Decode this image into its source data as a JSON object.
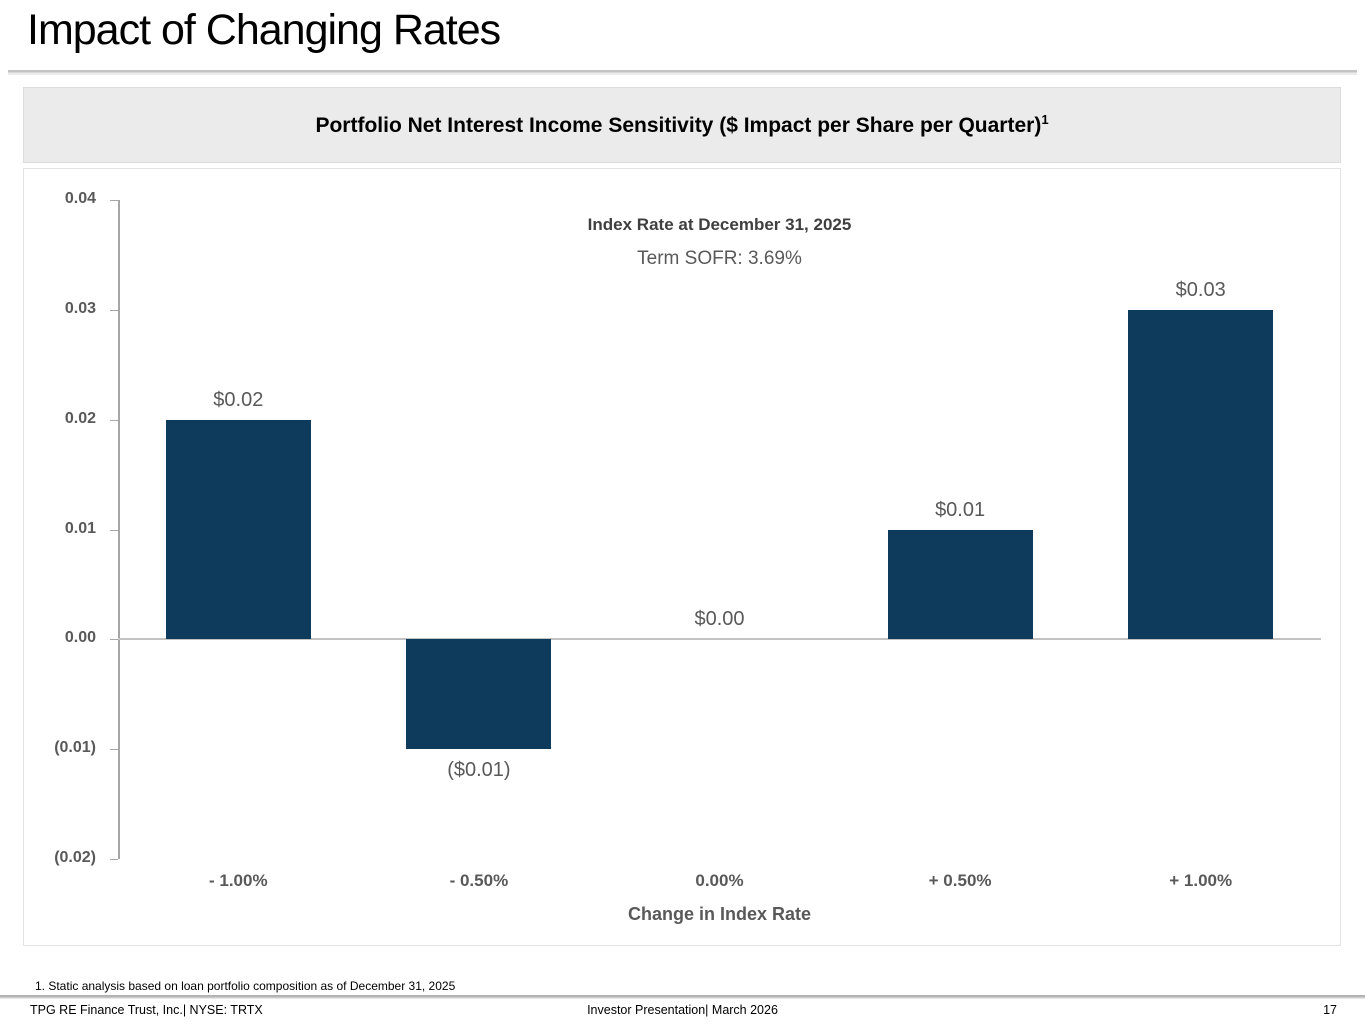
{
  "page": {
    "title": "Impact of Changing Rates",
    "footnote": "1. Static analysis based on loan portfolio composition as of December 31, 2025",
    "footer": {
      "left": "TPG RE Finance Trust, Inc.| NYSE: TRTX",
      "center": "Investor Presentation| March 2026",
      "page_number": "17"
    }
  },
  "panel": {
    "title": "Portfolio Net Interest Income Sensitivity ($ Impact per Share per Quarter)",
    "title_superscript": "1"
  },
  "chart_data": {
    "type": "bar",
    "title": "Portfolio Net Interest Income Sensitivity ($ Impact per Share per Quarter)",
    "annotation": {
      "line1": "Index Rate at December 31, 2025",
      "line2": "Term SOFR: 3.69%"
    },
    "categories": [
      "- 1.00%",
      "- 0.50%",
      "0.00%",
      "+ 0.50%",
      "+ 1.00%"
    ],
    "values": [
      0.02,
      -0.01,
      0.0,
      0.01,
      0.03
    ],
    "value_labels": [
      "$0.02",
      "($0.01)",
      "$0.00",
      "$0.01",
      "$0.03"
    ],
    "xlabel": "Change in Index Rate",
    "ylabel": "",
    "ylim": [
      -0.02,
      0.04
    ],
    "y_ticks": [
      {
        "value": 0.04,
        "label": "0.04"
      },
      {
        "value": 0.03,
        "label": "0.03"
      },
      {
        "value": 0.02,
        "label": "0.02"
      },
      {
        "value": 0.01,
        "label": "0.01"
      },
      {
        "value": 0.0,
        "label": "0.00"
      },
      {
        "value": -0.01,
        "label": "(0.01)"
      },
      {
        "value": -0.02,
        "label": "(0.02)"
      }
    ],
    "grid": false,
    "legend": false,
    "bar_color": "#0e3a5c",
    "axis_color": "#a6a6a6",
    "zero_line_color": "#c2c2c2",
    "tick_label_color": "#595959",
    "data_label_color": "#595959"
  }
}
